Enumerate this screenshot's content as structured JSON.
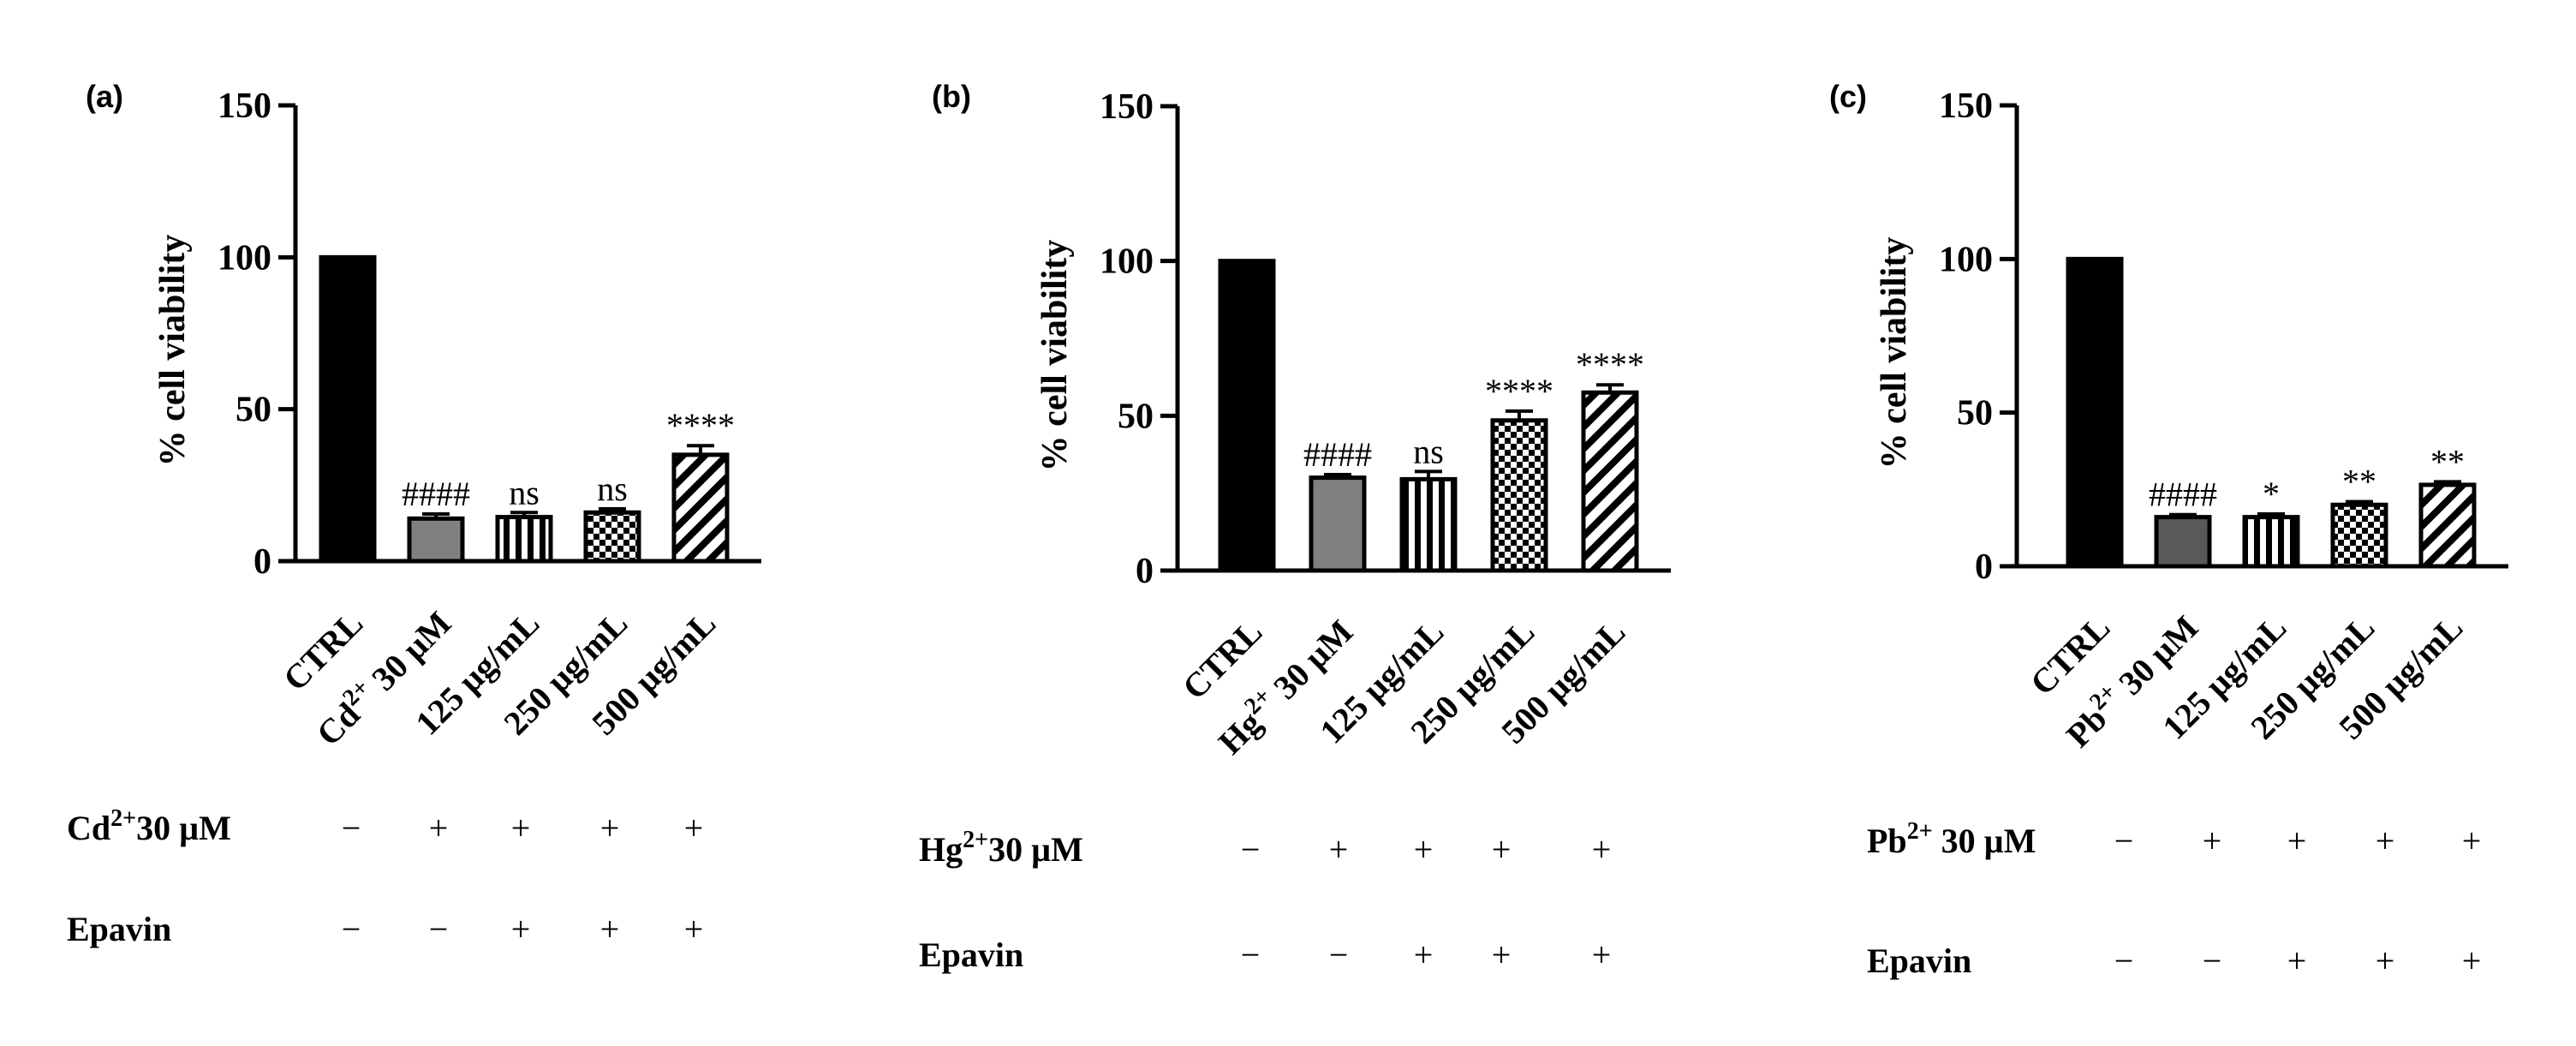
{
  "chart_data": [
    {
      "type": "bar",
      "panel_label": "(a)",
      "ylabel": "% cell viability",
      "ylim": [
        0,
        150
      ],
      "yticks": [
        0,
        50,
        100,
        150
      ],
      "categories": [
        "CTRL",
        "Cd2+ 30 µM",
        "125 µg/mL",
        "250 µg/mL",
        "500 µg/mL"
      ],
      "category_label_parts": [
        {
          "main": "CTRL"
        },
        {
          "main": "Cd",
          "sup": "2+",
          "rest": " 30 µM"
        },
        {
          "main": "125 µg/mL"
        },
        {
          "main": "250 µg/mL"
        },
        {
          "main": "500 µg/mL"
        }
      ],
      "values": [
        100,
        14,
        14.5,
        16,
        35
      ],
      "errors": [
        0,
        1.5,
        1.5,
        1.2,
        3
      ],
      "significance": [
        "",
        "####",
        "ns",
        "ns",
        "****"
      ],
      "fills": [
        "black",
        "gray",
        "vstripes",
        "checker",
        "diag"
      ],
      "treatment_table": [
        {
          "label_main": "Cd",
          "label_sup": "2+",
          "label_rest": "30 µM",
          "signs": [
            "−",
            "+",
            "+",
            "+",
            "+"
          ]
        },
        {
          "label_main": "Epavin",
          "label_sup": "",
          "label_rest": "",
          "signs": [
            "−",
            "−",
            "+",
            "+",
            "+"
          ]
        }
      ]
    },
    {
      "type": "bar",
      "panel_label": "(b)",
      "ylabel": "% cell viability",
      "ylim": [
        0,
        150
      ],
      "yticks": [
        0,
        50,
        100,
        150
      ],
      "categories": [
        "CTRL",
        "Hg2+ 30 µM",
        "125 µg/mL",
        "250 µg/mL",
        "500 µg/mL"
      ],
      "category_label_parts": [
        {
          "main": "CTRL"
        },
        {
          "main": "Hg",
          "sup": "2+",
          "rest": " 30 µM"
        },
        {
          "main": "125 µg/mL"
        },
        {
          "main": "250 µg/mL"
        },
        {
          "main": "500 µg/mL"
        }
      ],
      "values": [
        100,
        30,
        29.5,
        48.5,
        57.5
      ],
      "errors": [
        0,
        1,
        2.5,
        3,
        2.5
      ],
      "significance": [
        "",
        "####",
        "ns",
        "****",
        "****"
      ],
      "fills": [
        "black",
        "gray",
        "vstripes",
        "checker",
        "diag"
      ],
      "treatment_table": [
        {
          "label_main": "Hg",
          "label_sup": "2+",
          "label_rest": "30 µM",
          "signs": [
            "−",
            "+",
            "+",
            "+",
            "+"
          ]
        },
        {
          "label_main": "Epavin",
          "label_sup": "",
          "label_rest": "",
          "signs": [
            "−",
            "−",
            "+",
            "+",
            "+"
          ]
        }
      ]
    },
    {
      "type": "bar",
      "panel_label": "(c)",
      "ylabel": "% cell viability",
      "ylim": [
        0,
        150
      ],
      "yticks": [
        0,
        50,
        100,
        150
      ],
      "categories": [
        "CTRL",
        "Pb2+ 30 µM",
        "125 µg/mL",
        "250 µg/mL",
        "500 µg/mL"
      ],
      "category_label_parts": [
        {
          "main": "CTRL"
        },
        {
          "main": "Pb",
          "sup": "2+",
          "rest": " 30 µM"
        },
        {
          "main": "125 µg/mL"
        },
        {
          "main": "250 µg/mL"
        },
        {
          "main": "500 µg/mL"
        }
      ],
      "values": [
        100,
        16,
        16,
        20,
        26.5
      ],
      "errors": [
        0,
        0.8,
        1,
        1,
        1
      ],
      "significance": [
        "",
        "####",
        "*",
        "**",
        "**"
      ],
      "fills": [
        "black",
        "darkgray",
        "vstripes",
        "checker",
        "diag"
      ],
      "treatment_table": [
        {
          "label_main": "Pb",
          "label_sup": "2+",
          "label_rest": " 30 µM",
          "signs": [
            "−",
            "+",
            "+",
            "+",
            "+"
          ]
        },
        {
          "label_main": "Epavin",
          "label_sup": "",
          "label_rest": "",
          "signs": [
            "−",
            "−",
            "+",
            "+",
            "+"
          ]
        }
      ]
    }
  ]
}
